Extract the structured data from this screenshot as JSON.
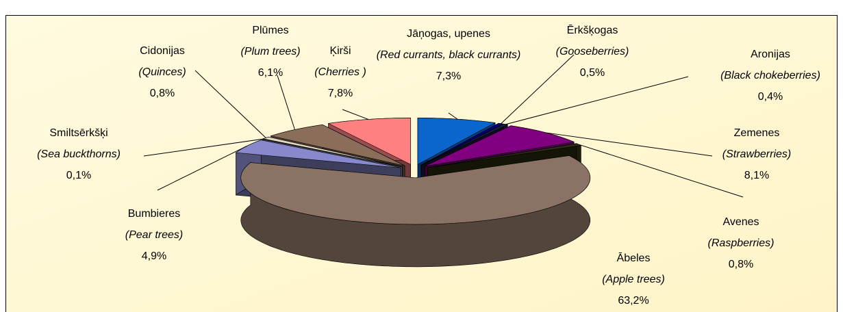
{
  "chart_data": {
    "type": "pie",
    "categories": [
      "Jāņogas, upenes",
      "Ērkšķogas",
      "Aronijas",
      "Zemenes",
      "Avenes",
      "Ābeles",
      "Bumbieres",
      "Smiltsērkšķi",
      "Cidonijas",
      "Plūmes",
      "Ķirši"
    ],
    "translations": [
      "(Red currants, black currants)",
      "(Gooseberries)",
      "(Black chokeberries)",
      "(Strawberries)",
      "(Raspberries)",
      "(Apple trees)",
      "(Pear trees)",
      "(Sea buckthorns)",
      "(Quinces)",
      "(Plum trees)",
      "(Cherries )"
    ],
    "values": [
      7.3,
      0.5,
      0.4,
      8.1,
      0.8,
      63.2,
      4.9,
      0.1,
      0.8,
      6.1,
      7.8
    ],
    "value_labels": [
      "7,3%",
      "0,5%",
      "0,4%",
      "8,1%",
      "0,8%",
      "63,2%",
      "4,9%",
      "0,1%",
      "0,8%",
      "6,1%",
      "7,8%"
    ],
    "colors": [
      "#0a66cc",
      "#000080",
      "#1c1c48",
      "#800080",
      "#2e2e10",
      "#8a7264",
      "#8888cc",
      "#c0c0e0",
      "#e0d8c0",
      "#8a6e5a",
      "#ff8080"
    ]
  }
}
